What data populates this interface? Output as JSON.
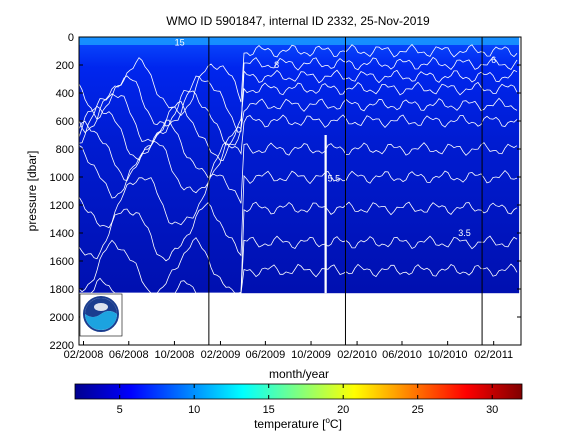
{
  "chart_data": {
    "type": "heatmap",
    "title": "WMO ID 5901847, internal ID 2332, 25-Nov-2019",
    "xlabel": "month/year",
    "ylabel": "pressure [dbar]",
    "colorbar_label": "temperature [",
    "colorbar_unit_superscript": "o",
    "colorbar_unit_letter": "C]",
    "x_ticks": [
      "02/2008",
      "06/2008",
      "10/2008",
      "02/2009",
      "06/2009",
      "10/2009",
      "02/2010",
      "06/2010",
      "10/2010",
      "02/2011"
    ],
    "y_ticks": [
      0,
      200,
      400,
      600,
      800,
      1000,
      1200,
      1400,
      1600,
      1800,
      2000,
      2200
    ],
    "ylim": [
      0,
      2200
    ],
    "y_reversed": true,
    "xlim": [
      "2008-01-20",
      "2011-04-15"
    ],
    "colorbar_ticks": [
      5,
      10,
      15,
      20,
      25,
      30
    ],
    "colorbar_range": [
      2,
      32
    ],
    "colormap": "jet",
    "year_separators": [
      "2009-01-01",
      "2010-01-01",
      "2011-01-01"
    ],
    "data_extent": {
      "x_start": "2008-01-20",
      "x_end": "2011-04-10",
      "max_pressure": 1830
    },
    "data_gap": {
      "x_start": "2009-11-06",
      "x_end": "2009-11-12",
      "pressure_top": 700,
      "pressure_bottom": 1830
    },
    "shallow_profile_region": {
      "x_start": "2009-02-05",
      "x_end": "2009-03-31",
      "max_pressure": 1830
    },
    "contour_labels": [
      {
        "text": "5.5",
        "date": "2009-12-01",
        "pressure": 1010
      },
      {
        "text": "3.5",
        "date": "2010-11-15",
        "pressure": 1400
      },
      {
        "text": "6",
        "date": "2011-02-01",
        "pressure": 165
      },
      {
        "text": "15",
        "date": "2008-10-15",
        "pressure": 40
      },
      {
        "text": "8",
        "date": "2009-07-01",
        "pressure": 200
      }
    ],
    "temperature_profile_typical": [
      {
        "pressure": 0,
        "temperature": 13
      },
      {
        "pressure": 100,
        "temperature": 9
      },
      {
        "pressure": 300,
        "temperature": 6.8
      },
      {
        "pressure": 600,
        "temperature": 5.5
      },
      {
        "pressure": 1000,
        "temperature": 4.5
      },
      {
        "pressure": 1400,
        "temperature": 3.6
      },
      {
        "pressure": 1800,
        "temperature": 3.0
      }
    ],
    "logo": "noaa-logo"
  }
}
